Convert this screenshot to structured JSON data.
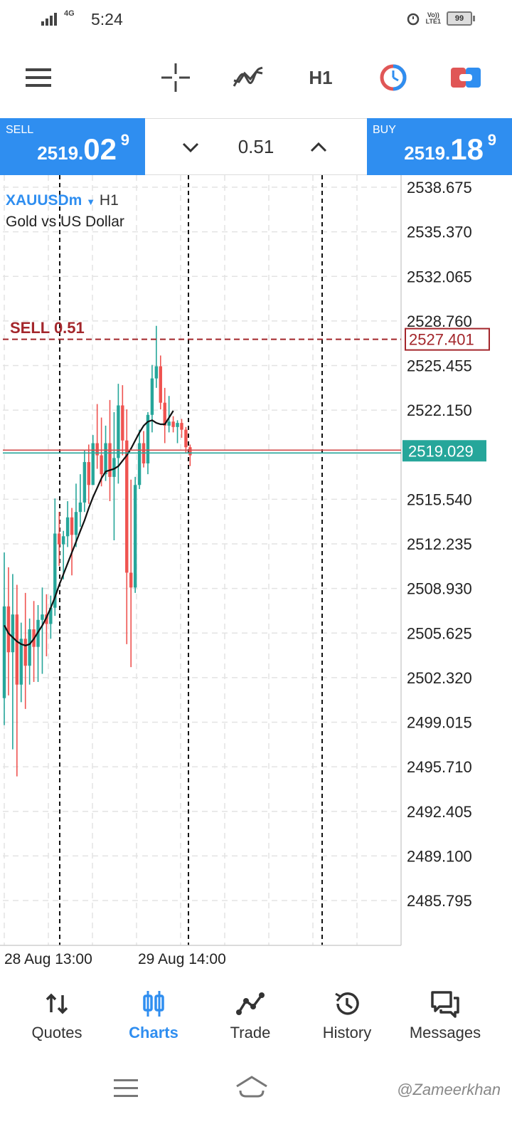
{
  "status_bar": {
    "network": "4G",
    "time": "5:24",
    "lte": "LTE1",
    "volte": "Vo))",
    "battery": "99"
  },
  "toolbar": {
    "timeframe": "H1",
    "icons": [
      "menu-icon",
      "crosshair-icon",
      "indicators-icon",
      "timeframe",
      "one-click-trading-icon",
      "trade-toggle-icon"
    ]
  },
  "trade_panel": {
    "sell_label": "SELL",
    "sell_price_main": "2519.",
    "sell_price_big": "02",
    "sell_price_sup": "9",
    "buy_label": "BUY",
    "buy_price_main": "2519.",
    "buy_price_big": "18",
    "buy_price_sup": "9",
    "lot": "0.51"
  },
  "chart": {
    "symbol": "XAUUSDm",
    "timeframe": "H1",
    "description": "Gold vs US Dollar",
    "sell_order_label": "SELL 0.51",
    "sell_order_price": "2527.401",
    "current_price": "2519.029",
    "price_ticks": [
      "2538.675",
      "2535.370",
      "2532.065",
      "2528.760",
      "2525.455",
      "2522.150",
      "2515.540",
      "2512.235",
      "2508.930",
      "2505.625",
      "2502.320",
      "2499.015",
      "2495.710",
      "2492.405",
      "2489.100",
      "2485.795"
    ],
    "date_labels": [
      "28 Aug 13:00",
      "29 Aug 14:00"
    ],
    "colors": {
      "bull": "#26a69a",
      "bear": "#ef5350",
      "order": "#a3262b",
      "ma": "#111111"
    }
  },
  "chart_data": {
    "type": "candlestick",
    "candles": [
      {
        "o": 2500.8,
        "h": 2511.6,
        "l": 2498.8,
        "c": 2507.6
      },
      {
        "o": 2507.6,
        "h": 2510.5,
        "l": 2501.0,
        "c": 2504.2
      },
      {
        "o": 2504.2,
        "h": 2510.0,
        "l": 2497.0,
        "c": 2507.0
      },
      {
        "o": 2507.0,
        "h": 2509.2,
        "l": 2495.0,
        "c": 2501.8
      },
      {
        "o": 2501.8,
        "h": 2506.4,
        "l": 2500.5,
        "c": 2505.2
      },
      {
        "o": 2505.2,
        "h": 2508.6,
        "l": 2500.0,
        "c": 2503.2
      },
      {
        "o": 2503.2,
        "h": 2506.7,
        "l": 2501.8,
        "c": 2505.9
      },
      {
        "o": 2505.9,
        "h": 2508.0,
        "l": 2502.0,
        "c": 2504.6
      },
      {
        "o": 2504.6,
        "h": 2507.7,
        "l": 2502.0,
        "c": 2506.6
      },
      {
        "o": 2506.6,
        "h": 2509.0,
        "l": 2502.6,
        "c": 2507.0
      },
      {
        "o": 2507.0,
        "h": 2508.5,
        "l": 2503.9,
        "c": 2506.3
      },
      {
        "o": 2506.3,
        "h": 2508.4,
        "l": 2505.2,
        "c": 2507.5
      },
      {
        "o": 2507.5,
        "h": 2515.6,
        "l": 2506.9,
        "c": 2513.0
      },
      {
        "o": 2513.0,
        "h": 2514.6,
        "l": 2510.6,
        "c": 2512.2
      },
      {
        "o": 2512.2,
        "h": 2513.2,
        "l": 2509.6,
        "c": 2512.8
      },
      {
        "o": 2512.8,
        "h": 2515.4,
        "l": 2512.0,
        "c": 2514.2
      },
      {
        "o": 2514.2,
        "h": 2514.9,
        "l": 2509.9,
        "c": 2512.9
      },
      {
        "o": 2512.9,
        "h": 2516.7,
        "l": 2512.0,
        "c": 2514.6
      },
      {
        "o": 2514.6,
        "h": 2517.4,
        "l": 2513.5,
        "c": 2515.3
      },
      {
        "o": 2515.3,
        "h": 2519.2,
        "l": 2514.6,
        "c": 2518.3
      },
      {
        "o": 2518.3,
        "h": 2519.6,
        "l": 2515.2,
        "c": 2516.6
      },
      {
        "o": 2516.6,
        "h": 2520.3,
        "l": 2516.6,
        "c": 2519.7
      },
      {
        "o": 2519.7,
        "h": 2522.6,
        "l": 2517.8,
        "c": 2518.8
      },
      {
        "o": 2518.8,
        "h": 2521.6,
        "l": 2516.5,
        "c": 2517.4
      },
      {
        "o": 2517.4,
        "h": 2521.0,
        "l": 2516.9,
        "c": 2519.7
      },
      {
        "o": 2519.7,
        "h": 2522.9,
        "l": 2515.4,
        "c": 2517.2
      },
      {
        "o": 2517.2,
        "h": 2522.0,
        "l": 2512.5,
        "c": 2518.6
      },
      {
        "o": 2518.6,
        "h": 2524.1,
        "l": 2516.7,
        "c": 2522.5
      },
      {
        "o": 2522.5,
        "h": 2524.0,
        "l": 2518.8,
        "c": 2519.9
      },
      {
        "o": 2519.9,
        "h": 2522.2,
        "l": 2504.8,
        "c": 2510.1
      },
      {
        "o": 2510.1,
        "h": 2517.0,
        "l": 2503.1,
        "c": 2509.0
      },
      {
        "o": 2509.0,
        "h": 2517.2,
        "l": 2508.6,
        "c": 2516.6
      },
      {
        "o": 2516.6,
        "h": 2520.7,
        "l": 2516.3,
        "c": 2519.7
      },
      {
        "o": 2519.7,
        "h": 2520.6,
        "l": 2517.9,
        "c": 2518.2
      },
      {
        "o": 2518.2,
        "h": 2522.0,
        "l": 2517.4,
        "c": 2521.8
      },
      {
        "o": 2521.8,
        "h": 2525.5,
        "l": 2520.5,
        "c": 2524.5
      },
      {
        "o": 2524.5,
        "h": 2528.4,
        "l": 2523.8,
        "c": 2525.4
      },
      {
        "o": 2525.4,
        "h": 2526.2,
        "l": 2522.2,
        "c": 2522.7
      },
      {
        "o": 2522.7,
        "h": 2523.8,
        "l": 2519.7,
        "c": 2521.0
      },
      {
        "o": 2521.0,
        "h": 2523.2,
        "l": 2520.5,
        "c": 2521.3
      },
      {
        "o": 2521.3,
        "h": 2521.7,
        "l": 2520.5,
        "c": 2520.9
      },
      {
        "o": 2520.9,
        "h": 2521.4,
        "l": 2519.7,
        "c": 2521.2
      },
      {
        "o": 2521.2,
        "h": 2521.5,
        "l": 2520.1,
        "c": 2520.7
      },
      {
        "o": 2520.7,
        "h": 2520.9,
        "l": 2519.0,
        "c": 2519.4
      },
      {
        "o": 2519.4,
        "h": 2519.6,
        "l": 2518.0,
        "c": 2518.8
      }
    ],
    "moving_average": [
      2506.2,
      2505.6,
      2505.3,
      2505.0,
      2504.8,
      2504.7,
      2504.8,
      2505.2,
      2505.7,
      2506.2,
      2506.8,
      2507.5,
      2508.3,
      2509.2,
      2510.0,
      2510.8,
      2511.6,
      2512.4,
      2513.2,
      2514.0,
      2514.9,
      2515.7,
      2516.4,
      2517.1,
      2517.6,
      2517.7,
      2517.8,
      2518.0,
      2518.4,
      2518.8,
      2519.3,
      2519.9,
      2520.5,
      2521.0,
      2521.3,
      2521.4,
      2521.2,
      2521.1,
      2521.1,
      2521.6,
      2522.1
    ],
    "ylim": [
      2484.0,
      2540.0
    ],
    "order_line": 2527.401,
    "bid_line": 2519.029
  },
  "bottom_nav": [
    {
      "label": "Quotes",
      "icon": "quotes-icon",
      "active": false
    },
    {
      "label": "Charts",
      "icon": "charts-icon",
      "active": true
    },
    {
      "label": "Trade",
      "icon": "trade-icon",
      "active": false
    },
    {
      "label": "History",
      "icon": "history-icon",
      "active": false
    },
    {
      "label": "Messages",
      "icon": "messages-icon",
      "active": false
    }
  ],
  "watermark": "@Zameerkhan"
}
